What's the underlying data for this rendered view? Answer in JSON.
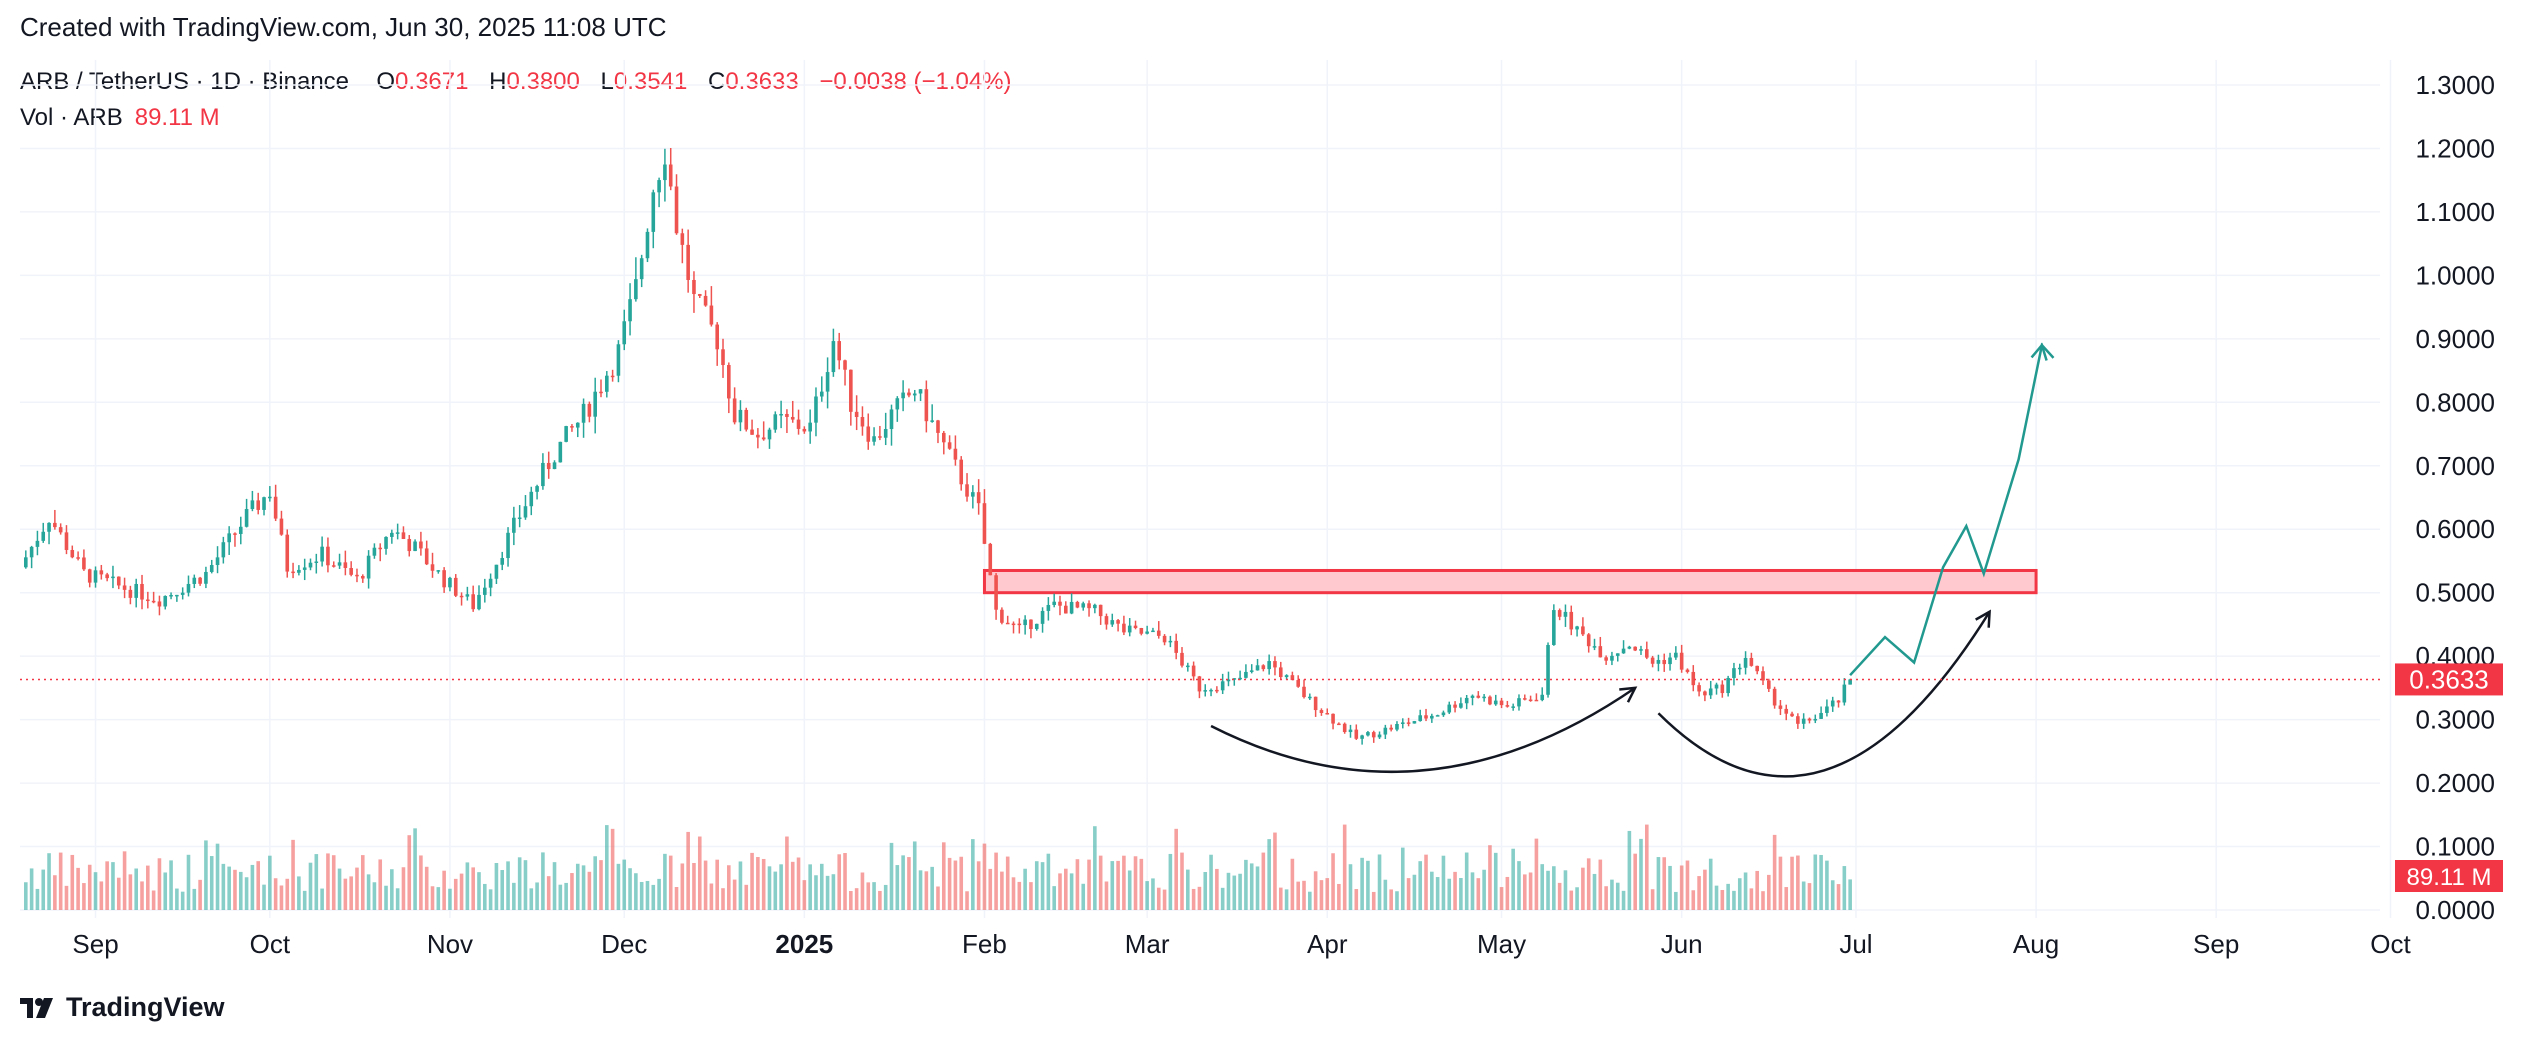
{
  "header": {
    "created_text": "Created with TradingView.com, Jun 30, 2025 11:08 UTC"
  },
  "legend": {
    "symbol": "ARB / TetherUS · 1D · Binance",
    "open_label": "O",
    "open_value": "0.3671",
    "high_label": "H",
    "high_value": "0.3800",
    "low_label": "L",
    "low_value": "0.3541",
    "close_label": "C",
    "close_value": "0.3633",
    "change": "−0.0038 (−1.04%)",
    "vol_label": "Vol · ARB",
    "vol_value": "89.11 M"
  },
  "footer": {
    "brand": "TradingView",
    "logo_icon": "tradingview-logo-icon"
  },
  "colors": {
    "up": "#26a69a",
    "down": "#ef5350",
    "price_badge": "#f23645",
    "zone_fill": "#ffc9cf",
    "zone_border": "#f23645",
    "projection": "#22998f"
  },
  "chart_data": {
    "type": "candlestick",
    "y_axis": {
      "min": 0.0,
      "max": 1.3,
      "ticks": [
        "1.3000",
        "1.2000",
        "1.1000",
        "1.0000",
        "0.9000",
        "0.8000",
        "0.7000",
        "0.6000",
        "0.5000",
        "0.4000",
        "0.3000",
        "0.2000",
        "0.1000",
        "0.0000"
      ],
      "position": "right"
    },
    "x_axis": {
      "ticks": [
        {
          "label": "Sep",
          "date": "2024-09-01"
        },
        {
          "label": "Oct",
          "date": "2024-10-01"
        },
        {
          "label": "Nov",
          "date": "2024-11-01"
        },
        {
          "label": "Dec",
          "date": "2024-12-01"
        },
        {
          "label": "2025",
          "date": "2025-01-01",
          "bold": true
        },
        {
          "label": "Feb",
          "date": "2025-02-01"
        },
        {
          "label": "Mar",
          "date": "2025-03-01"
        },
        {
          "label": "Apr",
          "date": "2025-04-01"
        },
        {
          "label": "May",
          "date": "2025-05-01"
        },
        {
          "label": "Jun",
          "date": "2025-06-01"
        },
        {
          "label": "Jul",
          "date": "2025-07-01"
        },
        {
          "label": "Aug",
          "date": "2025-08-01"
        },
        {
          "label": "Sep",
          "date": "2025-09-01"
        },
        {
          "label": "Oct",
          "date": "2025-10-01"
        }
      ]
    },
    "grid": true,
    "start_date": "2024-08-19",
    "last_price": {
      "value": 0.3633,
      "label": "0.3633"
    },
    "last_volume": {
      "label": "89.11 M"
    },
    "price_path": [
      [
        "2024-08-19",
        0.54
      ],
      [
        "2024-08-24",
        0.62
      ],
      [
        "2024-08-30",
        0.53
      ],
      [
        "2024-09-05",
        0.51
      ],
      [
        "2024-09-12",
        0.49
      ],
      [
        "2024-09-20",
        0.53
      ],
      [
        "2024-09-27",
        0.62
      ],
      [
        "2024-10-01",
        0.66
      ],
      [
        "2024-10-04",
        0.54
      ],
      [
        "2024-10-10",
        0.56
      ],
      [
        "2024-10-16",
        0.52
      ],
      [
        "2024-10-22",
        0.6
      ],
      [
        "2024-10-26",
        0.57
      ],
      [
        "2024-10-31",
        0.52
      ],
      [
        "2024-11-05",
        0.48
      ],
      [
        "2024-11-09",
        0.55
      ],
      [
        "2024-11-14",
        0.64
      ],
      [
        "2024-11-19",
        0.72
      ],
      [
        "2024-11-24",
        0.78
      ],
      [
        "2024-11-30",
        0.88
      ],
      [
        "2024-12-03",
        0.98
      ],
      [
        "2024-12-06",
        1.14
      ],
      [
        "2024-12-08",
        1.2
      ],
      [
        "2024-12-10",
        1.08
      ],
      [
        "2024-12-13",
        0.96
      ],
      [
        "2024-12-17",
        0.9
      ],
      [
        "2024-12-20",
        0.78
      ],
      [
        "2024-12-24",
        0.75
      ],
      [
        "2024-12-28",
        0.77
      ],
      [
        "2025-01-02",
        0.76
      ],
      [
        "2025-01-06",
        0.9
      ],
      [
        "2025-01-09",
        0.8
      ],
      [
        "2025-01-13",
        0.74
      ],
      [
        "2025-01-16",
        0.78
      ],
      [
        "2025-01-20",
        0.82
      ],
      [
        "2025-01-25",
        0.73
      ],
      [
        "2025-01-31",
        0.63
      ],
      [
        "2025-02-03",
        0.47
      ],
      [
        "2025-02-07",
        0.44
      ],
      [
        "2025-02-13",
        0.48
      ],
      [
        "2025-02-20",
        0.47
      ],
      [
        "2025-02-25",
        0.44
      ],
      [
        "2025-03-04",
        0.43
      ],
      [
        "2025-03-10",
        0.35
      ],
      [
        "2025-03-16",
        0.36
      ],
      [
        "2025-03-22",
        0.39
      ],
      [
        "2025-03-29",
        0.33
      ],
      [
        "2025-04-06",
        0.27
      ],
      [
        "2025-04-13",
        0.29
      ],
      [
        "2025-04-20",
        0.31
      ],
      [
        "2025-04-26",
        0.34
      ],
      [
        "2025-05-02",
        0.32
      ],
      [
        "2025-05-08",
        0.34
      ],
      [
        "2025-05-10",
        0.48
      ],
      [
        "2025-05-14",
        0.44
      ],
      [
        "2025-05-19",
        0.4
      ],
      [
        "2025-05-23",
        0.42
      ],
      [
        "2025-05-27",
        0.39
      ],
      [
        "2025-05-31",
        0.4
      ],
      [
        "2025-06-04",
        0.34
      ],
      [
        "2025-06-08",
        0.35
      ],
      [
        "2025-06-12",
        0.4
      ],
      [
        "2025-06-16",
        0.34
      ],
      [
        "2025-06-21",
        0.29
      ],
      [
        "2025-06-25",
        0.31
      ],
      [
        "2025-06-28",
        0.33
      ],
      [
        "2025-06-30",
        0.3633
      ]
    ],
    "annotations": {
      "resistance_zone": {
        "from": "2025-02-01",
        "to": "2025-08-01",
        "low": 0.5,
        "high": 0.535
      },
      "projection_path": [
        [
          "2025-06-30",
          0.37
        ],
        [
          "2025-07-06",
          0.43
        ],
        [
          "2025-07-11",
          0.39
        ],
        [
          "2025-07-16",
          0.54
        ],
        [
          "2025-07-20",
          0.605
        ],
        [
          "2025-07-23",
          0.53
        ],
        [
          "2025-07-29",
          0.71
        ],
        [
          "2025-08-02",
          0.89
        ],
        [
          "2025-08-04",
          0.87
        ]
      ],
      "arc_1": {
        "from": "2025-03-12",
        "to": "2025-05-24",
        "start": 0.29,
        "bottom": 0.22,
        "end": 0.35
      },
      "arc_2": {
        "from": "2025-05-28",
        "to": "2025-07-24",
        "start": 0.31,
        "bottom": 0.22,
        "end": 0.47
      }
    }
  }
}
